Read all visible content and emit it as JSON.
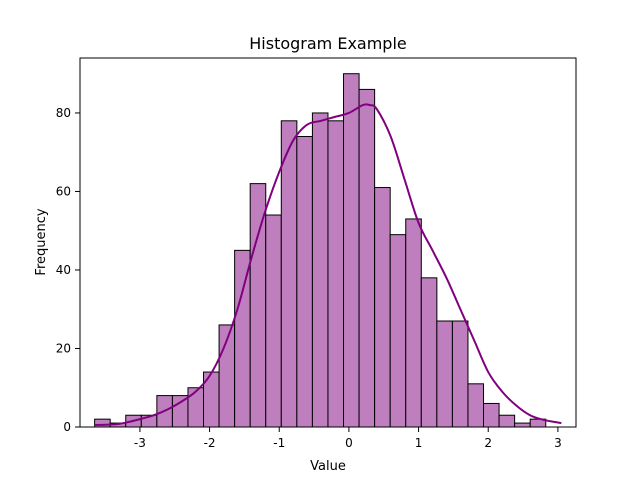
{
  "chart_data": {
    "type": "bar",
    "title": "Histogram Example",
    "xlabel": "Value",
    "ylabel": "Frequency",
    "xlim": [
      -3.86,
      3.26
    ],
    "ylim": [
      0,
      94
    ],
    "xticks": [
      -3,
      -2,
      -1,
      0,
      1,
      2,
      3
    ],
    "yticks": [
      0,
      20,
      40,
      60,
      80
    ],
    "bin_start": -3.65,
    "bin_width": 0.2233,
    "counts": [
      2,
      1,
      3,
      3,
      8,
      8,
      10,
      14,
      26,
      45,
      62,
      54,
      78,
      74,
      80,
      78,
      90,
      86,
      61,
      49,
      53,
      38,
      27,
      27,
      11,
      6,
      3,
      1,
      2
    ],
    "kde": {
      "x": [
        -3.65,
        -3.3,
        -3.0,
        -2.8,
        -2.6,
        -2.4,
        -2.2,
        -2.0,
        -1.8,
        -1.6,
        -1.4,
        -1.2,
        -1.0,
        -0.8,
        -0.6,
        -0.4,
        -0.2,
        0.0,
        0.2,
        0.3,
        0.4,
        0.6,
        0.8,
        1.0,
        1.2,
        1.4,
        1.6,
        1.8,
        2.0,
        2.2,
        2.4,
        2.6,
        2.8,
        3.05
      ],
      "y": [
        0.5,
        0.8,
        2,
        3,
        4.5,
        6.5,
        9,
        13,
        20,
        30,
        43,
        55,
        65,
        73,
        77,
        78,
        79,
        80,
        82,
        82,
        81,
        74,
        63,
        52,
        45,
        38,
        30,
        22,
        14,
        9,
        5.5,
        3,
        1.8,
        1
      ]
    },
    "grid": false,
    "colors": {
      "bar_fill": "#bf7fbf",
      "bar_edge": "#000000",
      "kde_line": "#800080"
    }
  }
}
